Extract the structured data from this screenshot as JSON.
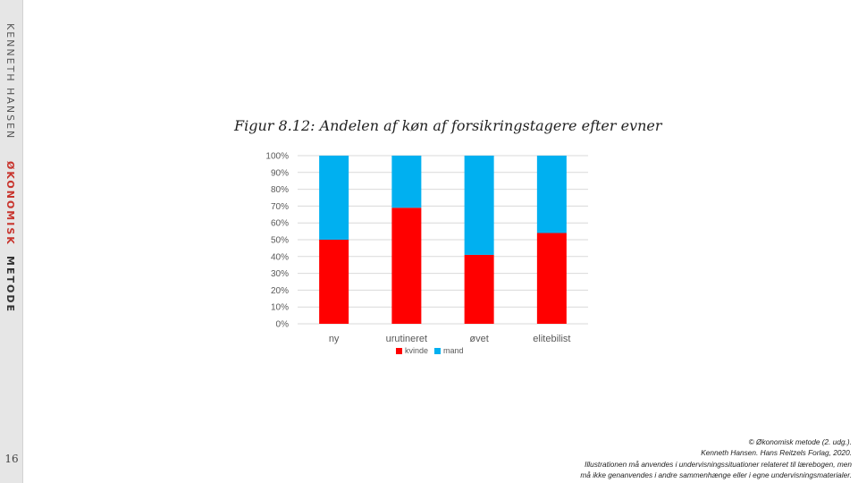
{
  "sidebar": {
    "author": "KENNETH HANSEN",
    "brand_word1": "ØKONOMISK",
    "brand_word2": "METODE",
    "page_number": "16"
  },
  "chart_title": "Figur 8.12: Andelen af køn af forsikringstagere efter evner",
  "chart_data": {
    "type": "bar",
    "stacked": true,
    "percent": true,
    "categories": [
      "ny",
      "urutineret",
      "øvet",
      "elitebilist"
    ],
    "series": [
      {
        "name": "kvinde",
        "color": "#ff0000",
        "values": [
          50,
          69,
          41,
          54
        ]
      },
      {
        "name": "mand",
        "color": "#00b0f0",
        "values": [
          50,
          31,
          59,
          46
        ]
      }
    ],
    "y_ticks": [
      "0%",
      "10%",
      "20%",
      "30%",
      "40%",
      "50%",
      "60%",
      "70%",
      "80%",
      "90%",
      "100%"
    ],
    "ylim": [
      0,
      100
    ],
    "grid": true,
    "legend_position": "bottom"
  },
  "copyright": {
    "line1": "© Økonomisk metode (2. udg.).",
    "line2": "Kenneth Hansen. Hans Reitzels Forlag, 2020.",
    "line3": "Illustrationen må anvendes i undervisningssituationer relateret til lærebogen, men",
    "line4": "må ikke genanvendes i andre sammenhænge eller i egne undervisningsmaterialer."
  }
}
